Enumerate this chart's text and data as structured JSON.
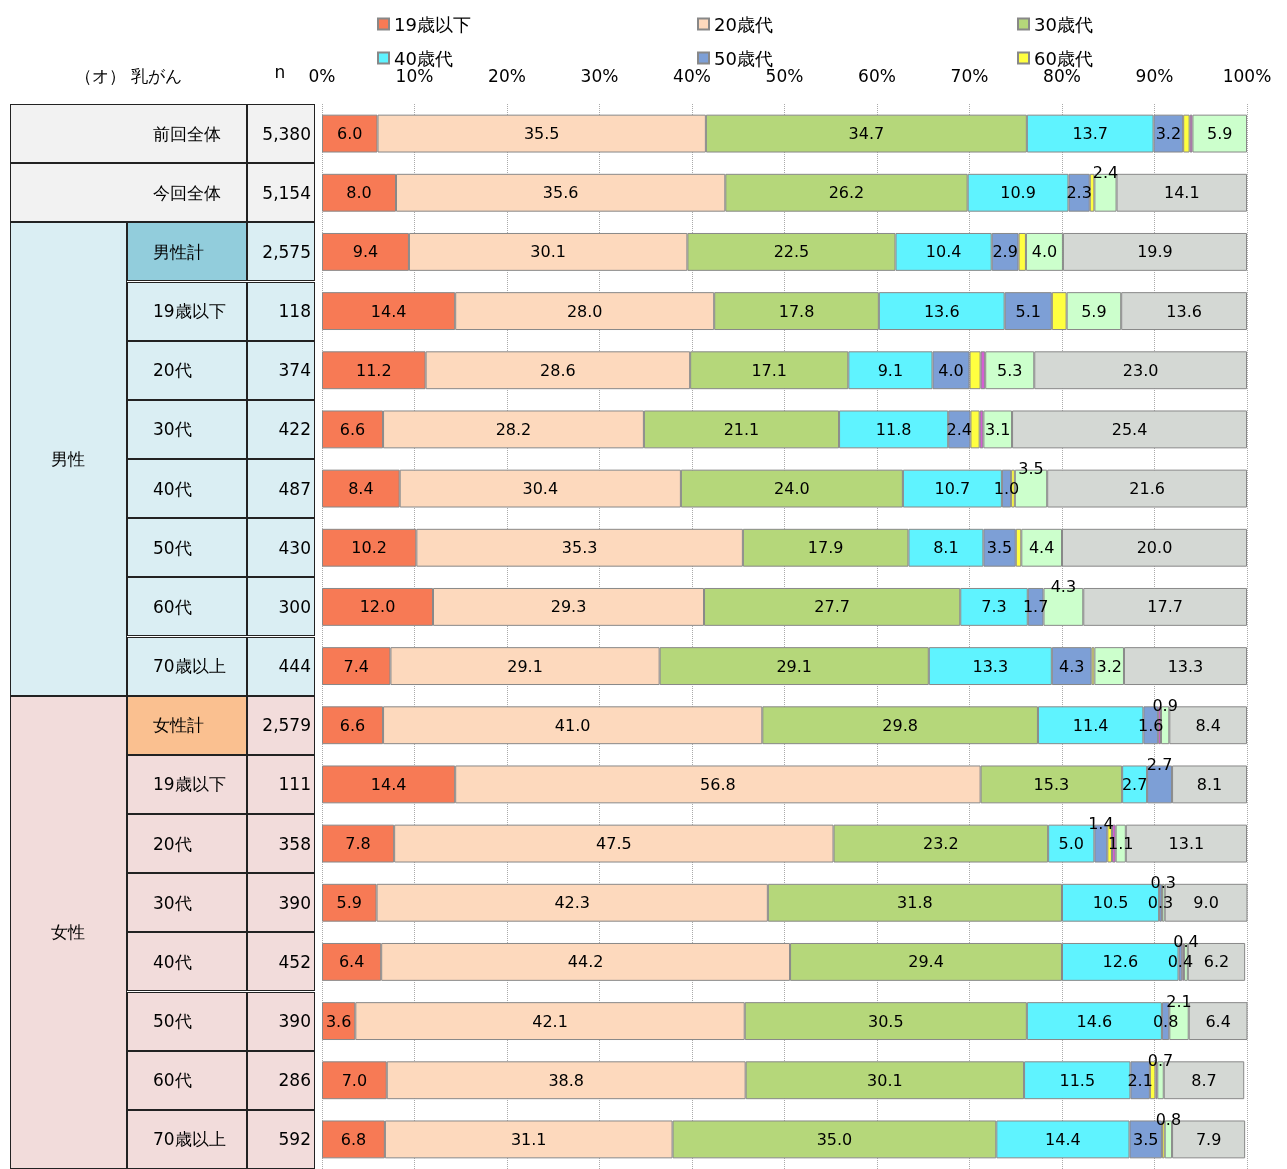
{
  "chart_data": {
    "type": "bar",
    "orientation": "horizontal",
    "stacked": true,
    "title": "（オ） 乳がん",
    "y2label": "n",
    "categories": [
      "前回全体",
      "今回全体",
      "男性計",
      "19歳以下",
      "20代",
      "30代",
      "40代",
      "50代",
      "60代",
      "70歳以上",
      "女性計",
      "19歳以下",
      "20代",
      "30代",
      "40代",
      "50代",
      "60代",
      "70歳以上"
    ],
    "y2_categories": [
      "5,380",
      "5,154",
      "2,575",
      "118",
      "374",
      "422",
      "487",
      "430",
      "300",
      "444",
      "2,579",
      "111",
      "358",
      "390",
      "452",
      "390",
      "286",
      "592"
    ],
    "annotations": [
      "男性",
      "女性"
    ],
    "xlim": [
      0,
      100
    ],
    "xticks": [
      {
        "value": 0,
        "label": "0%"
      },
      {
        "value": 10,
        "label": "10%"
      },
      {
        "value": 20,
        "label": "20%"
      },
      {
        "value": 30,
        "label": "30%"
      },
      {
        "value": 40,
        "label": "40%"
      },
      {
        "value": 50,
        "label": "50%"
      },
      {
        "value": 60,
        "label": "60%"
      },
      {
        "value": 70,
        "label": "70%"
      },
      {
        "value": 80,
        "label": "80%"
      },
      {
        "value": 90,
        "label": "90%"
      },
      {
        "value": 100,
        "label": "100%"
      }
    ],
    "grid": "x",
    "legend": "top",
    "series": [
      {
        "name": "19歳以下",
        "color": "#f77a55",
        "values": [
          6.0,
          8.0,
          9.4,
          14.4,
          11.2,
          6.6,
          8.4,
          10.2,
          12.0,
          7.4,
          6.6,
          14.4,
          7.8,
          5.9,
          6.4,
          3.6,
          7.0,
          6.8
        ],
        "value_labels": [
          "6.0",
          "8.0",
          "9.4",
          "14.4",
          "11.2",
          "6.6",
          "8.4",
          "10.2",
          "12.0",
          "7.4",
          "6.6",
          "14.4",
          "7.8",
          "5.9",
          "6.4",
          "3.6",
          "7.0",
          "6.8"
        ]
      },
      {
        "name": "20歳代",
        "color": "#fdd9bd",
        "values": [
          35.5,
          35.6,
          30.1,
          28.0,
          28.6,
          28.2,
          30.4,
          35.3,
          29.3,
          29.1,
          41.0,
          56.8,
          47.5,
          42.3,
          44.2,
          42.1,
          38.8,
          31.1
        ],
        "value_labels": [
          "35.5",
          "35.6",
          "30.1",
          "28.0",
          "28.6",
          "28.2",
          "30.4",
          "35.3",
          "29.3",
          "29.1",
          "41.0",
          "56.8",
          "47.5",
          "42.3",
          "44.2",
          "42.1",
          "38.8",
          "31.1"
        ]
      },
      {
        "name": "30歳代",
        "color": "#b5d77a",
        "values": [
          34.7,
          26.2,
          22.5,
          17.8,
          17.1,
          21.1,
          24.0,
          17.9,
          27.7,
          29.1,
          29.8,
          15.3,
          23.2,
          31.8,
          29.4,
          30.5,
          30.1,
          35.0
        ],
        "value_labels": [
          "34.7",
          "26.2",
          "22.5",
          "17.8",
          "17.1",
          "21.1",
          "24.0",
          "17.9",
          "27.7",
          "29.1",
          "29.8",
          "15.3",
          "23.2",
          "31.8",
          "29.4",
          "30.5",
          "30.1",
          "35.0"
        ]
      },
      {
        "name": "40歳代",
        "color": "#5ff3ff",
        "values": [
          13.7,
          10.9,
          10.4,
          13.6,
          9.1,
          11.8,
          10.7,
          8.1,
          7.3,
          13.3,
          11.4,
          2.7,
          5.0,
          10.5,
          12.6,
          14.6,
          11.5,
          14.4
        ],
        "value_labels": [
          "13.7",
          "10.9",
          "10.4",
          "13.6",
          "9.1",
          "11.8",
          "10.7",
          "8.1",
          "7.3",
          "13.3",
          "11.4",
          "2.7",
          "5.0",
          "10.5",
          "12.6",
          "14.6",
          "11.5",
          "14.4"
        ]
      },
      {
        "name": "50歳代",
        "color": "#7d9fd6",
        "values": [
          3.2,
          2.3,
          2.9,
          5.1,
          4.0,
          2.4,
          1.0,
          3.5,
          1.7,
          4.3,
          1.6,
          2.7,
          1.4,
          0.3,
          0.4,
          0.8,
          2.1,
          3.5
        ],
        "value_labels": [
          "3.2",
          "2.3",
          "2.9",
          "5.1",
          "4.0",
          "2.4",
          "1.0",
          "3.5",
          "1.7",
          "4.3",
          "1.6",
          "2.7",
          "1.4",
          "0.3",
          "0.4",
          "0.8",
          "2.1",
          "3.5"
        ]
      },
      {
        "name": "60歳代",
        "color": "#ffff40",
        "values": [
          0.7,
          0.5,
          0.8,
          1.6,
          1.2,
          1.0,
          0.4,
          0.6,
          null,
          0.3,
          null,
          null,
          0.5,
          null,
          null,
          null,
          0.6,
          0.3
        ]
      },
      {
        "color": "#d45fd4",
        "values": [
          0.3,
          null,
          null,
          null,
          0.5,
          0.4,
          null,
          null,
          null,
          null,
          0.3,
          null,
          0.4,
          null,
          0.2,
          null,
          0.2,
          null
        ]
      },
      {
        "color": "#ccffcc",
        "values": [
          5.9,
          2.4,
          4.0,
          5.9,
          5.3,
          3.1,
          3.5,
          4.4,
          4.3,
          3.2,
          0.9,
          null,
          1.1,
          0.3,
          0.4,
          2.1,
          0.7,
          0.8
        ],
        "value_labels": [
          "5.9",
          "2.4",
          "4.0",
          "5.9",
          "5.3",
          "3.1",
          "3.5",
          "4.4",
          "4.3",
          "3.2",
          "0.9",
          null,
          "1.1",
          "0.3",
          "0.4",
          "2.1",
          "0.7",
          "0.8"
        ]
      },
      {
        "color": "#d4d8d4",
        "values": [
          null,
          14.1,
          19.9,
          13.6,
          23.0,
          25.4,
          21.6,
          20.0,
          17.7,
          13.3,
          8.4,
          8.1,
          13.1,
          9.0,
          6.2,
          6.4,
          8.7,
          7.9
        ],
        "value_labels": [
          null,
          "14.1",
          "19.9",
          "13.6",
          "23.0",
          "25.4",
          "21.6",
          "20.0",
          "17.7",
          "13.3",
          "8.4",
          "8.1",
          "13.1",
          "9.0",
          "6.2",
          "6.4",
          "8.7",
          "7.9"
        ]
      }
    ]
  }
}
